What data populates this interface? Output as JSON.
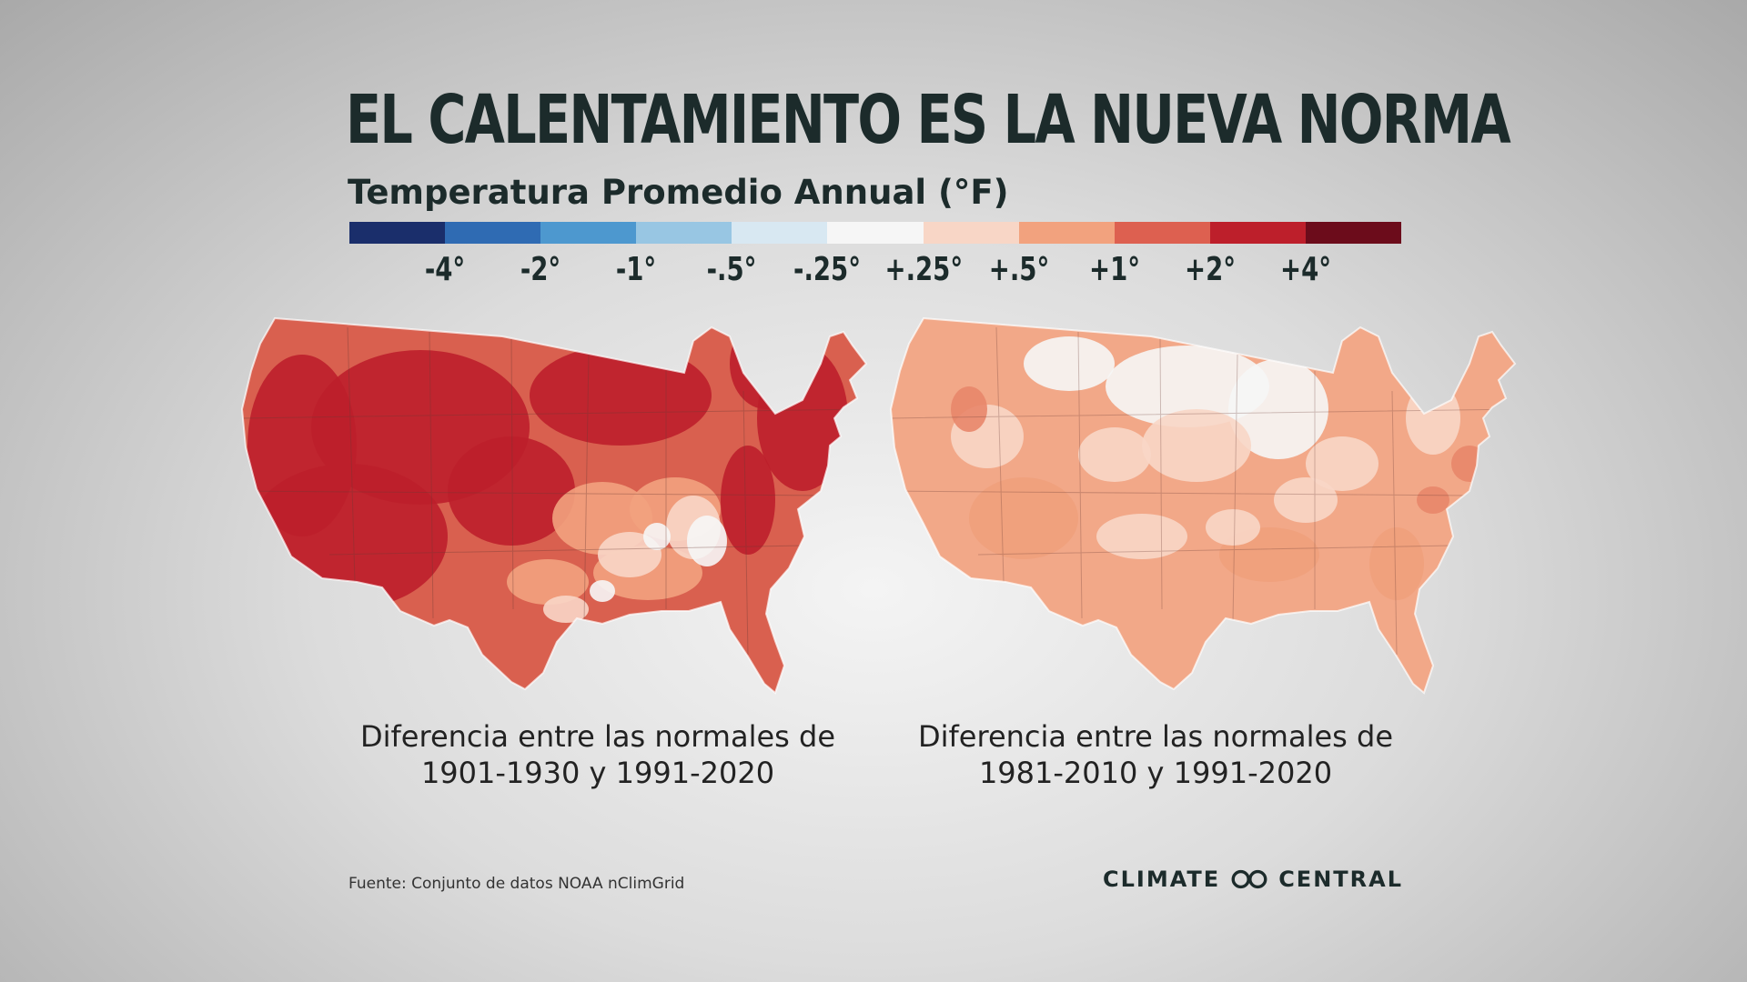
{
  "title": "EL CALENTAMIENTO ES LA NUEVA NORMA",
  "subtitle": "Temperatura Promedio Annual (°F)",
  "legend": {
    "colors": [
      "#1a2e6b",
      "#2f6bb3",
      "#4d98cf",
      "#98c6e3",
      "#d8e8f2",
      "#f6f6f6",
      "#f8d6c6",
      "#f2a27e",
      "#dd6050",
      "#bd1f2b",
      "#6c0c1b"
    ],
    "ticks": [
      "-4°",
      "-2°",
      "-1°",
      "-.5°",
      "-.25°",
      "+.25°",
      "+.5°",
      "+1°",
      "+2°",
      "+4°"
    ]
  },
  "maps": [
    {
      "caption_line1": "Diferencia entre las normales de",
      "caption_line2": "1901-1930 y 1991-2020",
      "base_color": "#d9604f",
      "patch_colors": [
        "#bd1f2b",
        "#bd1f2b",
        "#f2a27e",
        "#f8d6c6",
        "#f6f6f6"
      ]
    },
    {
      "caption_line1": "Diferencia entre las normales de",
      "caption_line2": "1981-2010 y 1991-2020",
      "base_color": "#f2a888",
      "patch_colors": [
        "#f8d6c6",
        "#f6f6f6",
        "#f0a07c",
        "#f8d6c6",
        "#e8866a"
      ]
    }
  ],
  "source": "Fuente: Conjunto de datos NOAA nClimGrid",
  "brand": {
    "left": "CLIMATE",
    "right": "CENTRAL",
    "logo_icon": "infinity-rings-icon"
  }
}
